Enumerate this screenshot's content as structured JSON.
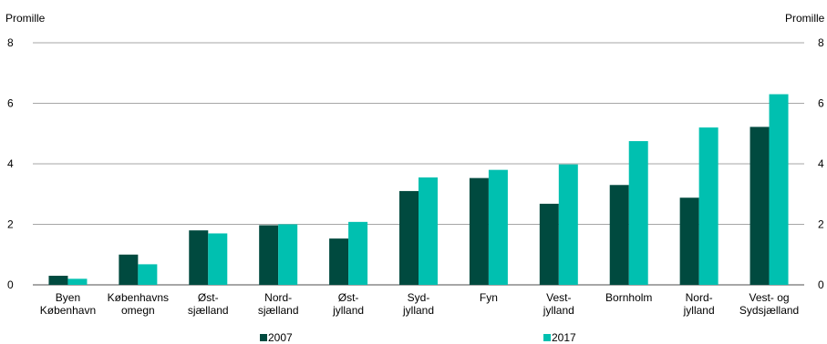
{
  "chart_data": {
    "type": "bar",
    "unit_label_left": "Promille",
    "unit_label_right": "Promille",
    "categories": [
      [
        "Byen",
        "København"
      ],
      [
        "Københavns",
        "omegn"
      ],
      [
        "Øst-",
        "sjælland"
      ],
      [
        "Nord-",
        "sjælland"
      ],
      [
        "Øst-",
        "jylland"
      ],
      [
        "Syd-",
        "jylland"
      ],
      [
        "Fyn"
      ],
      [
        "Vest-",
        "jylland"
      ],
      [
        "Bornholm"
      ],
      [
        "Nord-",
        "jylland"
      ],
      [
        "Vest- og",
        "Sydsjælland"
      ]
    ],
    "series": [
      {
        "name": "2007",
        "color": "#004a3f",
        "values": [
          0.3,
          1.0,
          1.8,
          1.97,
          1.53,
          3.1,
          3.53,
          2.68,
          3.3,
          2.88,
          5.22
        ]
      },
      {
        "name": "2017",
        "color": "#00c0b0",
        "values": [
          0.2,
          0.68,
          1.7,
          2.0,
          2.08,
          3.55,
          3.8,
          3.98,
          4.75,
          5.2,
          6.3
        ]
      }
    ],
    "ylim": [
      0,
      8
    ],
    "yticks": [
      0,
      2,
      4,
      6,
      8
    ],
    "grid": true,
    "legend_position": "bottom"
  }
}
